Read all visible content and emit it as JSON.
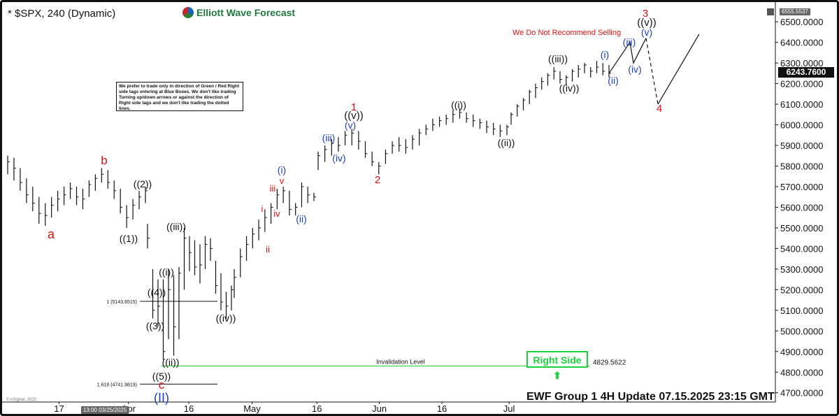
{
  "window": {
    "title": "* $SPX, 240 (Dynamic)",
    "logo_text": "Elliott Wave Forecast",
    "top_price_tag": "6555.5537",
    "current_price_tag": "6243.7600",
    "note_text": "We prefer to trade only in direction of Green / Red Right side tags entering at Blue Boxes. We don't like trading Turning up/down arrows or against the direction of Right side tags and we don't like trading the dotted lines.",
    "warning_text": "We Do Not Recommend Selling",
    "right_side_label": "Right Side",
    "right_side_arrow": "⬆",
    "footer_text": "EWF Group 1 4H   Update 07.15.2025 23:15 GMT",
    "time_label": "13:00 03/25/2025",
    "copyright": "© eSignal, 2025",
    "colors": {
      "wave_red": "#e01010",
      "wave_blue": "#1a3fc0",
      "wave_black": "#111111",
      "right_side_green": "#17d43a",
      "invalidation_green": "#17d43a"
    }
  },
  "chart_data": {
    "type": "bar",
    "symbol": "$SPX",
    "timeframe": "240",
    "y_ticks": [
      "6500.0000",
      "6400.0000",
      "6300.0000",
      "6200.0000",
      "6100.0000",
      "6000.0000",
      "5900.0000",
      "5800.0000",
      "5700.0000",
      "5600.0000",
      "5500.0000",
      "5400.0000",
      "5300.0000",
      "5200.0000",
      "5100.0000",
      "5000.0000",
      "4900.0000",
      "4800.0000",
      "4700.0000"
    ],
    "y_tick_values": [
      6500,
      6400,
      6300,
      6200,
      6100,
      6000,
      5900,
      5800,
      5700,
      5600,
      5500,
      5400,
      5300,
      5200,
      5100,
      5000,
      4900,
      4800,
      4700
    ],
    "ylim": [
      4655,
      6575
    ],
    "x_tick_labels": [
      "17",
      "Apr",
      "16",
      "May",
      "16",
      "Jun",
      "16",
      "Jul"
    ],
    "x_tick_positions": [
      0.072,
      0.162,
      0.24,
      0.322,
      0.406,
      0.487,
      0.568,
      0.655
    ],
    "bars_hlc": [
      [
        5850,
        5760,
        5820
      ],
      [
        5840,
        5730,
        5790
      ],
      [
        5790,
        5680,
        5720
      ],
      [
        5740,
        5620,
        5660
      ],
      [
        5700,
        5580,
        5620
      ],
      [
        5650,
        5520,
        5570
      ],
      [
        5620,
        5510,
        5560
      ],
      [
        5650,
        5550,
        5610
      ],
      [
        5680,
        5580,
        5640
      ],
      [
        5700,
        5610,
        5660
      ],
      [
        5720,
        5640,
        5690
      ],
      [
        5700,
        5610,
        5650
      ],
      [
        5690,
        5590,
        5640
      ],
      [
        5730,
        5650,
        5710
      ],
      [
        5760,
        5680,
        5740
      ],
      [
        5790,
        5720,
        5760
      ],
      [
        5780,
        5690,
        5720
      ],
      [
        5730,
        5640,
        5680
      ],
      [
        5690,
        5570,
        5600
      ],
      [
        5610,
        5500,
        5550
      ],
      [
        5640,
        5540,
        5610
      ],
      [
        5680,
        5590,
        5650
      ],
      [
        5700,
        5620,
        5680
      ],
      [
        5520,
        5400,
        5450
      ],
      [
        5300,
        5060,
        5100
      ],
      [
        5250,
        5020,
        5120
      ],
      [
        5250,
        4860,
        4900
      ],
      [
        5300,
        4960,
        5200
      ],
      [
        5270,
        4880,
        5020
      ],
      [
        5310,
        4960,
        5280
      ],
      [
        5500,
        5200,
        5450
      ],
      [
        5460,
        5290,
        5380
      ],
      [
        5440,
        5270,
        5310
      ],
      [
        5420,
        5230,
        5320
      ],
      [
        5460,
        5300,
        5420
      ],
      [
        5450,
        5340,
        5400
      ],
      [
        5340,
        5180,
        5220
      ],
      [
        5280,
        5100,
        5140
      ],
      [
        5190,
        5060,
        5120
      ],
      [
        5220,
        5100,
        5200
      ],
      [
        5300,
        5160,
        5260
      ],
      [
        5400,
        5260,
        5360
      ],
      [
        5460,
        5340,
        5420
      ],
      [
        5500,
        5400,
        5470
      ],
      [
        5540,
        5440,
        5500
      ],
      [
        5590,
        5480,
        5550
      ],
      [
        5620,
        5520,
        5600
      ],
      [
        5690,
        5590,
        5660
      ],
      [
        5700,
        5620,
        5680
      ],
      [
        5680,
        5560,
        5590
      ],
      [
        5620,
        5560,
        5600
      ],
      [
        5720,
        5600,
        5700
      ],
      [
        5700,
        5620,
        5660
      ],
      [
        5670,
        5630,
        5650
      ],
      [
        5870,
        5780,
        5850
      ],
      [
        5900,
        5820,
        5880
      ],
      [
        5930,
        5850,
        5910
      ],
      [
        5940,
        5870,
        5900
      ],
      [
        5970,
        5900,
        5950
      ],
      [
        5980,
        5900,
        5960
      ],
      [
        5970,
        5880,
        5920
      ],
      [
        5920,
        5840,
        5860
      ],
      [
        5870,
        5800,
        5820
      ],
      [
        5820,
        5760,
        5800
      ],
      [
        5880,
        5810,
        5860
      ],
      [
        5920,
        5860,
        5900
      ],
      [
        5940,
        5870,
        5900
      ],
      [
        5930,
        5860,
        5890
      ],
      [
        5950,
        5880,
        5930
      ],
      [
        5980,
        5900,
        5960
      ],
      [
        6000,
        5950,
        5980
      ],
      [
        6030,
        5970,
        6000
      ],
      [
        6040,
        5990,
        6020
      ],
      [
        6050,
        6000,
        6030
      ],
      [
        6070,
        6010,
        6050
      ],
      [
        6080,
        6030,
        6060
      ],
      [
        6060,
        6010,
        6030
      ],
      [
        6050,
        5990,
        6020
      ],
      [
        6030,
        5980,
        6010
      ],
      [
        6020,
        5960,
        5990
      ],
      [
        6010,
        5950,
        5980
      ],
      [
        6000,
        5940,
        5970
      ],
      [
        6000,
        5950,
        5990
      ],
      [
        6060,
        6000,
        6050
      ],
      [
        6100,
        6040,
        6090
      ],
      [
        6130,
        6070,
        6120
      ],
      [
        6170,
        6100,
        6160
      ],
      [
        6200,
        6130,
        6180
      ],
      [
        6230,
        6170,
        6210
      ],
      [
        6250,
        6190,
        6240
      ],
      [
        6280,
        6220,
        6260
      ],
      [
        6260,
        6200,
        6220
      ],
      [
        6240,
        6190,
        6230
      ],
      [
        6270,
        6210,
        6260
      ],
      [
        6290,
        6230,
        6270
      ],
      [
        6300,
        6250,
        6290
      ],
      [
        6280,
        6230,
        6260
      ],
      [
        6310,
        6250,
        6280
      ],
      [
        6300,
        6240,
        6260
      ],
      [
        6290,
        6230,
        6250
      ]
    ],
    "projection_path": [
      [
        6250,
        0
      ],
      [
        6400,
        1
      ],
      [
        6300,
        2
      ],
      [
        6420,
        3
      ],
      [
        6100,
        4
      ],
      [
        6440,
        6
      ]
    ],
    "levels": [
      {
        "label": "1 (5143.6515)",
        "value": 5143.6515
      },
      {
        "label": "1.618 (4741.9819)",
        "value": 4741.9819
      },
      {
        "label": "Invalidation Level",
        "value": 4829.5622,
        "value_label": "4829.5622"
      }
    ],
    "wave_labels": [
      {
        "text": "a",
        "color": "red"
      },
      {
        "text": "b",
        "color": "red"
      },
      {
        "text": "c",
        "color": "red"
      },
      {
        "text": "((1))",
        "color": "black"
      },
      {
        "text": "((2))",
        "color": "black"
      },
      {
        "text": "((3))",
        "color": "black"
      },
      {
        "text": "((4))",
        "color": "black"
      },
      {
        "text": "((5))",
        "color": "black"
      },
      {
        "text": "(II)",
        "color": "blue"
      },
      {
        "text": "((i))",
        "color": "black"
      },
      {
        "text": "((ii))",
        "color": "black"
      },
      {
        "text": "((iii))",
        "color": "black"
      },
      {
        "text": "((iv))",
        "color": "black"
      },
      {
        "text": "i",
        "color": "red"
      },
      {
        "text": "ii",
        "color": "red"
      },
      {
        "text": "iii",
        "color": "red"
      },
      {
        "text": "iv",
        "color": "red"
      },
      {
        "text": "v",
        "color": "red"
      },
      {
        "text": "(i)",
        "color": "blue"
      },
      {
        "text": "(ii)",
        "color": "blue"
      },
      {
        "text": "(iii)",
        "color": "blue"
      },
      {
        "text": "(iv)",
        "color": "blue"
      },
      {
        "text": "(v)",
        "color": "blue"
      },
      {
        "text": "((v))",
        "color": "black"
      },
      {
        "text": "1",
        "color": "red"
      },
      {
        "text": "2",
        "color": "red"
      },
      {
        "text": "((i))",
        "color": "black"
      },
      {
        "text": "((ii))",
        "color": "black"
      },
      {
        "text": "((iii))",
        "color": "black"
      },
      {
        "text": "((iv))",
        "color": "black"
      },
      {
        "text": "(i)",
        "color": "blue"
      },
      {
        "text": "(ii)",
        "color": "blue"
      },
      {
        "text": "(iii)",
        "color": "blue"
      },
      {
        "text": "(iv)",
        "color": "blue"
      },
      {
        "text": "(v)",
        "color": "blue"
      },
      {
        "text": "((v))",
        "color": "black"
      },
      {
        "text": "3",
        "color": "red"
      },
      {
        "text": "4",
        "color": "red"
      }
    ],
    "grid": false
  }
}
